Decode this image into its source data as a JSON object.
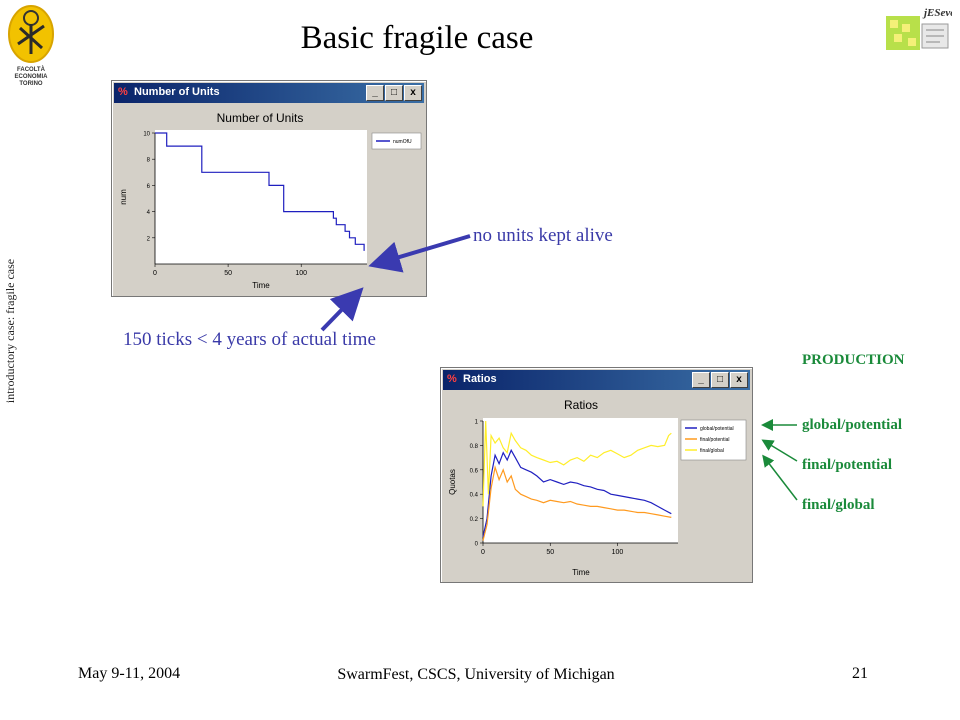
{
  "slide": {
    "title": "Basic fragile case",
    "side_label": "introductory case: fragile case"
  },
  "logos": {
    "left": {
      "text": "FACOLTÀ ECONOMIA TORINO",
      "color": "#f2c200"
    },
    "right": {
      "text": "jESevol"
    }
  },
  "window_units": {
    "title": "Number of Units",
    "plot_title": "Number of Units",
    "xlabel": "Time",
    "ylabel": "num",
    "legend": "numOfU",
    "buttons": {
      "minimize": "_",
      "maximize": "□",
      "close": "x"
    }
  },
  "window_ratios": {
    "title": "Ratios",
    "plot_title": "Ratios",
    "xlabel": "Time",
    "ylabel": "Quotas",
    "buttons": {
      "minimize": "_",
      "maximize": "□",
      "close": "x"
    }
  },
  "annotations": {
    "no_units": "no units kept alive",
    "ticks": "150 ticks < 4 years of actual time",
    "color": "#3a3aa8"
  },
  "production": {
    "heading": "PRODUCTION",
    "labels": [
      "global/potential",
      "final/potential",
      "final/global"
    ],
    "color": "#1a8a3a"
  },
  "footer": {
    "date": "May 9-11, 2004",
    "conference": "SwarmFest, CSCS, University of Michigan",
    "page": "21"
  },
  "chart_data": [
    {
      "type": "line",
      "title": "Number of Units",
      "xlabel": "Time",
      "ylabel": "num",
      "xlim": [
        0,
        145
      ],
      "ylim": [
        0,
        10
      ],
      "xticks": [
        0,
        50,
        100
      ],
      "yticks": [
        2,
        4,
        6,
        8,
        10
      ],
      "series": [
        {
          "name": "numOfU",
          "color": "#1f1fbf",
          "x": [
            0,
            8,
            8,
            26,
            26,
            32,
            32,
            78,
            78,
            88,
            88,
            122,
            122,
            124,
            124,
            130,
            130,
            133,
            133,
            137,
            137,
            143,
            143
          ],
          "y": [
            10,
            10,
            9,
            9,
            9,
            9,
            7,
            7,
            6,
            6,
            4,
            4,
            3.5,
            3.5,
            3,
            3,
            2.5,
            2.5,
            2,
            2,
            1.5,
            1.5,
            1
          ]
        }
      ]
    },
    {
      "type": "line",
      "title": "Ratios",
      "xlabel": "Time",
      "ylabel": "Quotas",
      "xlim": [
        0,
        145
      ],
      "ylim": [
        0,
        1
      ],
      "xticks": [
        0,
        50,
        100
      ],
      "yticks": [
        0,
        0.2,
        0.4,
        0.6,
        0.8,
        1
      ],
      "series": [
        {
          "name": "global/potential",
          "color": "#2020c0",
          "x": [
            0,
            3,
            6,
            9,
            12,
            15,
            18,
            21,
            24,
            28,
            32,
            36,
            40,
            45,
            50,
            55,
            60,
            65,
            70,
            75,
            80,
            85,
            90,
            95,
            100,
            105,
            110,
            115,
            120,
            125,
            130,
            135,
            140
          ],
          "y": [
            0.05,
            0.2,
            0.55,
            0.72,
            0.65,
            0.74,
            0.68,
            0.76,
            0.7,
            0.62,
            0.6,
            0.58,
            0.55,
            0.5,
            0.52,
            0.5,
            0.48,
            0.5,
            0.49,
            0.47,
            0.46,
            0.44,
            0.43,
            0.4,
            0.39,
            0.38,
            0.37,
            0.36,
            0.35,
            0.33,
            0.3,
            0.27,
            0.24
          ]
        },
        {
          "name": "final/potential",
          "color": "#ff9a1f",
          "x": [
            0,
            3,
            6,
            9,
            12,
            15,
            18,
            21,
            24,
            28,
            32,
            36,
            40,
            45,
            50,
            55,
            60,
            65,
            70,
            75,
            80,
            85,
            90,
            95,
            100,
            105,
            110,
            115,
            120,
            125,
            130,
            135,
            140
          ],
          "y": [
            0.02,
            0.15,
            0.45,
            0.62,
            0.52,
            0.6,
            0.5,
            0.55,
            0.44,
            0.4,
            0.38,
            0.36,
            0.35,
            0.33,
            0.35,
            0.34,
            0.33,
            0.34,
            0.32,
            0.31,
            0.3,
            0.3,
            0.29,
            0.28,
            0.27,
            0.27,
            0.26,
            0.25,
            0.25,
            0.24,
            0.23,
            0.22,
            0.21
          ]
        },
        {
          "name": "final/global",
          "color": "#ffee2a",
          "x": [
            0,
            2,
            4,
            6,
            9,
            12,
            15,
            18,
            21,
            24,
            28,
            32,
            36,
            40,
            45,
            50,
            55,
            60,
            65,
            70,
            75,
            80,
            85,
            90,
            95,
            100,
            105,
            110,
            115,
            120,
            125,
            130,
            135,
            138,
            140
          ],
          "y": [
            0.3,
            1.0,
            0.4,
            0.88,
            0.82,
            0.86,
            0.78,
            0.74,
            0.9,
            0.84,
            0.78,
            0.76,
            0.72,
            0.7,
            0.68,
            0.66,
            0.67,
            0.64,
            0.68,
            0.7,
            0.67,
            0.72,
            0.7,
            0.74,
            0.76,
            0.73,
            0.7,
            0.72,
            0.76,
            0.78,
            0.8,
            0.79,
            0.8,
            0.88,
            0.9
          ]
        }
      ]
    }
  ]
}
